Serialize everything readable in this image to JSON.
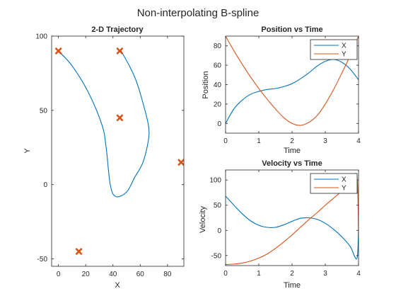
{
  "figure_title": "Non-interpolating B-spline",
  "colors": {
    "x_series": "#0072BD",
    "y_series": "#D95319",
    "axes": "#262626",
    "background": "#ffffff"
  },
  "chart_data": [
    {
      "type": "line",
      "title": "2-D Trajectory",
      "xlabel": "X",
      "ylabel": "Y",
      "xlim": [
        -5,
        92
      ],
      "ylim": [
        -55,
        100
      ],
      "xticks": [
        0,
        20,
        40,
        60,
        80
      ],
      "yticks": [
        -50,
        0,
        50,
        100
      ],
      "series": [
        {
          "kind": "line",
          "color": "#0072BD",
          "x": [
            0,
            10,
            22,
            32,
            35,
            38,
            42,
            50,
            56,
            62,
            66,
            66,
            62,
            57,
            52,
            46
          ],
          "y": [
            90,
            80,
            62,
            40,
            25,
            0,
            -8,
            -5,
            5,
            15,
            30,
            40,
            55,
            70,
            80,
            90
          ]
        },
        {
          "kind": "scatter",
          "marker": "x",
          "color": "#D95319",
          "x": [
            0,
            45,
            45,
            90,
            15
          ],
          "y": [
            90,
            90,
            45,
            15,
            -45
          ]
        }
      ]
    },
    {
      "type": "line",
      "title": "Position vs Time",
      "xlabel": "Time",
      "ylabel": "Position",
      "xlim": [
        0,
        4
      ],
      "ylim": [
        -10,
        90
      ],
      "xticks": [
        0,
        1,
        2,
        3,
        4
      ],
      "yticks": [
        0,
        20,
        40,
        60,
        80
      ],
      "legend": {
        "position": "top-right",
        "entries": [
          "X",
          "Y"
        ]
      },
      "series": [
        {
          "name": "X",
          "color": "#0072BD",
          "x": [
            0,
            0.25,
            0.5,
            0.75,
            1.0,
            1.25,
            1.5,
            1.75,
            2.0,
            2.25,
            2.5,
            2.75,
            3.0,
            3.25,
            3.5,
            3.75,
            4.0
          ],
          "y": [
            0,
            15,
            24,
            30,
            33,
            35,
            36,
            38,
            41,
            46,
            52,
            59,
            64,
            66,
            63,
            56,
            45
          ]
        },
        {
          "name": "Y",
          "color": "#D95319",
          "x": [
            0,
            0.25,
            0.5,
            0.75,
            1.0,
            1.25,
            1.5,
            1.75,
            2.0,
            2.25,
            2.5,
            2.75,
            3.0,
            3.25,
            3.5,
            3.75,
            4.0
          ],
          "y": [
            90,
            75,
            61,
            48,
            36,
            25,
            15,
            6,
            0,
            -2,
            1,
            8,
            20,
            35,
            52,
            70,
            90
          ]
        }
      ]
    },
    {
      "type": "line",
      "title": "Velocity vs Time",
      "xlabel": "Time",
      "ylabel": "Velocity",
      "xlim": [
        0,
        4
      ],
      "ylim": [
        -70,
        120
      ],
      "xticks": [
        0,
        1,
        2,
        3,
        4
      ],
      "yticks": [
        -50,
        0,
        50,
        100
      ],
      "legend": {
        "position": "top-right",
        "entries": [
          "X",
          "Y"
        ]
      },
      "series": [
        {
          "name": "X",
          "color": "#0072BD",
          "x": [
            0,
            0.25,
            0.5,
            0.75,
            1.0,
            1.25,
            1.5,
            1.75,
            2.0,
            2.25,
            2.5,
            2.75,
            3.0,
            3.25,
            3.5,
            3.75,
            3.95,
            4.0
          ],
          "y": [
            68,
            50,
            33,
            19,
            10,
            6,
            6,
            11,
            18,
            24,
            25,
            22,
            14,
            2,
            -13,
            -32,
            -56,
            0
          ]
        },
        {
          "name": "Y",
          "color": "#D95319",
          "x": [
            0,
            0.25,
            0.5,
            0.75,
            1.0,
            1.25,
            1.5,
            1.75,
            2.0,
            2.25,
            2.5,
            2.75,
            3.0,
            3.25,
            3.5,
            3.75,
            3.95,
            4.0
          ],
          "y": [
            -68,
            -67,
            -65,
            -61,
            -55,
            -47,
            -36,
            -23,
            -9,
            6,
            21,
            35,
            50,
            64,
            78,
            93,
            108,
            -5
          ]
        }
      ]
    }
  ]
}
